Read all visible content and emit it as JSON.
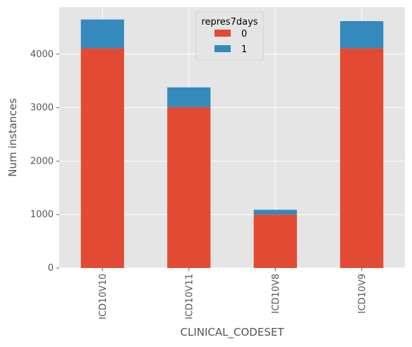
{
  "chart_data": {
    "type": "bar",
    "stacked": true,
    "categories": [
      "ICD10V10",
      "ICD10V11",
      "ICD10V8",
      "ICD10V9"
    ],
    "series": [
      {
        "name": "0",
        "values": [
          4110,
          3010,
          1000,
          4110
        ],
        "color": "#E24A33"
      },
      {
        "name": "1",
        "values": [
          540,
          370,
          90,
          510
        ],
        "color": "#348ABD"
      }
    ],
    "xlabel": "CLINICAL_CODESET",
    "ylabel": "Num instances",
    "ylim": [
      0,
      4883
    ],
    "yticks": [
      0,
      1000,
      2000,
      3000,
      4000
    ],
    "ytick_labels": [
      "0",
      "1000",
      "2000",
      "3000",
      "4000"
    ],
    "legend": {
      "title": "repres7days",
      "labels": [
        "0",
        "1"
      ],
      "placement": "top-center"
    },
    "grid": true,
    "background": "#E5E5E5"
  }
}
